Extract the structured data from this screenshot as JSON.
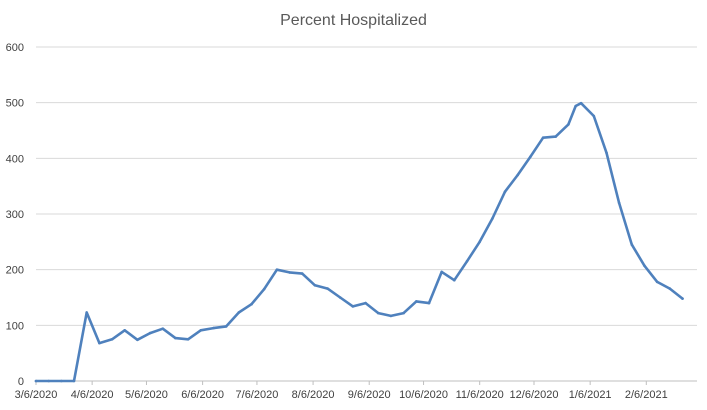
{
  "chart_data": {
    "type": "line",
    "title": "Percent Hospitalized",
    "xlabel": "",
    "ylabel": "",
    "ylim": [
      0,
      600
    ],
    "yticks": [
      0,
      100,
      200,
      300,
      400,
      500,
      600
    ],
    "xlim": [
      "2020-03-06",
      "2021-03-06"
    ],
    "xtick_labels": [
      "3/6/2020",
      "4/6/2020",
      "5/6/2020",
      "6/6/2020",
      "7/6/2020",
      "8/6/2020",
      "9/6/2020",
      "10/6/2020",
      "11/6/2020",
      "12/6/2020",
      "1/6/2021",
      "2/6/2021"
    ],
    "grid": true,
    "legend": "none",
    "color": "#4f81bd",
    "series": [
      {
        "x": [
          "2020-03-06",
          "2020-03-13",
          "2020-03-20",
          "2020-03-27",
          "2020-04-03",
          "2020-04-10",
          "2020-04-17",
          "2020-04-24",
          "2020-05-01",
          "2020-05-08",
          "2020-05-15",
          "2020-05-22",
          "2020-05-29",
          "2020-06-05",
          "2020-06-12",
          "2020-06-19",
          "2020-06-26",
          "2020-07-03",
          "2020-07-10",
          "2020-07-17",
          "2020-07-24",
          "2020-07-31",
          "2020-08-07",
          "2020-08-14",
          "2020-08-21",
          "2020-08-28",
          "2020-09-04",
          "2020-09-11",
          "2020-09-18",
          "2020-09-25",
          "2020-10-02",
          "2020-10-09",
          "2020-10-16",
          "2020-10-23",
          "2020-10-30",
          "2020-11-06",
          "2020-11-13",
          "2020-11-20",
          "2020-11-27",
          "2020-12-04",
          "2020-12-11",
          "2020-12-18",
          "2020-12-25",
          "2020-12-29",
          "2021-01-01",
          "2021-01-08",
          "2021-01-15",
          "2021-01-22",
          "2021-01-29",
          "2021-02-05",
          "2021-02-12",
          "2021-02-19",
          "2021-02-26"
        ],
        "values": [
          0,
          0,
          0,
          0,
          123,
          68,
          75,
          91,
          74,
          86,
          94,
          77,
          75,
          91,
          95,
          98,
          123,
          138,
          165,
          200,
          195,
          193,
          172,
          166,
          150,
          134,
          140,
          122,
          117,
          122,
          143,
          140,
          196,
          181,
          215,
          250,
          292,
          340,
          370,
          403,
          437,
          439,
          461,
          494,
          499,
          476,
          410,
          320,
          245,
          207,
          178,
          166,
          148
        ]
      }
    ]
  }
}
